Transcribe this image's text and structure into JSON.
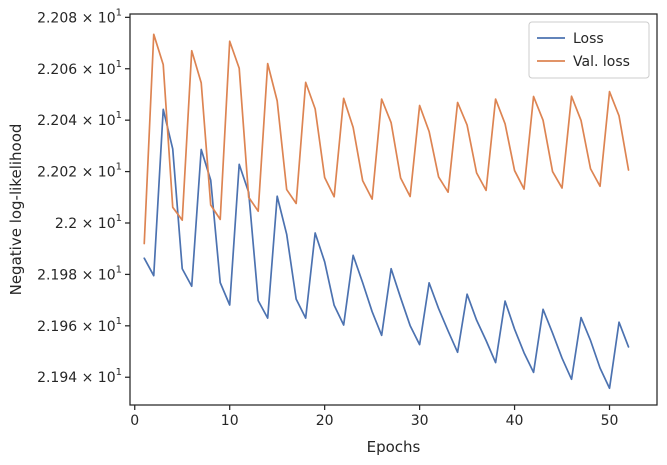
{
  "chart_data": {
    "type": "line",
    "title": "",
    "xlabel": "Epochs",
    "ylabel": "Negative log-likelihood",
    "xlim": [
      -0.5,
      55.0
    ],
    "ylim": [
      21.9292,
      22.0813
    ],
    "grid": false,
    "legend_position": "top-right",
    "x_ticks": [
      0,
      10,
      20,
      30,
      40,
      50
    ],
    "x_tick_labels": [
      "0",
      "10",
      "20",
      "30",
      "40",
      "50"
    ],
    "y_ticks": [
      21.94,
      21.96,
      21.98,
      22.0,
      22.02,
      22.04,
      22.06,
      22.08
    ],
    "y_tick_labels": [
      {
        "mantissa": "2.194",
        "base": "10",
        "exp": "1"
      },
      {
        "mantissa": "2.196",
        "base": "10",
        "exp": "1"
      },
      {
        "mantissa": "2.198",
        "base": "10",
        "exp": "1"
      },
      {
        "mantissa": "2.2",
        "base": "10",
        "exp": "1"
      },
      {
        "mantissa": "2.202",
        "base": "10",
        "exp": "1"
      },
      {
        "mantissa": "2.204",
        "base": "10",
        "exp": "1"
      },
      {
        "mantissa": "2.206",
        "base": "10",
        "exp": "1"
      },
      {
        "mantissa": "2.208",
        "base": "10",
        "exp": "1"
      }
    ],
    "x": [
      1,
      2,
      3,
      4,
      5,
      6,
      7,
      8,
      9,
      10,
      11,
      12,
      13,
      14,
      15,
      16,
      17,
      18,
      19,
      20,
      21,
      22,
      23,
      24,
      25,
      26,
      27,
      28,
      29,
      30,
      31,
      32,
      33,
      34,
      35,
      36,
      37,
      38,
      39,
      40,
      41,
      42,
      43,
      44,
      45,
      46,
      47,
      48,
      49,
      50,
      51,
      52
    ],
    "series": [
      {
        "name": "Loss",
        "color": "#4c72b0",
        "values": [
          21.9863,
          21.9795,
          22.0442,
          22.0288,
          21.9822,
          21.9754,
          22.0286,
          22.0167,
          21.9768,
          21.9681,
          22.0228,
          22.0119,
          21.9698,
          21.963,
          22.0104,
          21.9956,
          21.9704,
          21.963,
          21.9961,
          21.9849,
          21.968,
          21.9603,
          21.9874,
          21.9768,
          21.9655,
          21.9563,
          21.9822,
          21.9709,
          21.9601,
          21.9527,
          21.9767,
          21.9667,
          21.958,
          21.9497,
          21.9723,
          21.9622,
          21.9543,
          21.9457,
          21.9696,
          21.9587,
          21.9495,
          21.9419,
          21.9664,
          21.9572,
          21.9474,
          21.9392,
          21.9632,
          21.9543,
          21.9436,
          21.9357,
          21.9614,
          21.9518
        ]
      },
      {
        "name": "Val. loss",
        "color": "#dd8452",
        "values": [
          21.992,
          22.0734,
          22.0616,
          22.0061,
          22.0011,
          22.067,
          22.0545,
          22.007,
          22.0014,
          22.0707,
          22.0602,
          22.01,
          22.0046,
          22.062,
          22.0475,
          22.013,
          22.0076,
          22.0547,
          22.0444,
          22.0177,
          22.0102,
          22.0485,
          22.0372,
          22.0165,
          22.0093,
          22.0482,
          22.039,
          22.0175,
          22.0103,
          22.0457,
          22.0356,
          22.0179,
          22.012,
          22.0469,
          22.0381,
          22.0195,
          22.0127,
          22.0482,
          22.0386,
          22.0204,
          22.0132,
          22.0492,
          22.04,
          22.02,
          22.0136,
          22.0493,
          22.0399,
          22.0211,
          22.0143,
          22.0511,
          22.0417,
          22.0206
        ]
      }
    ]
  }
}
